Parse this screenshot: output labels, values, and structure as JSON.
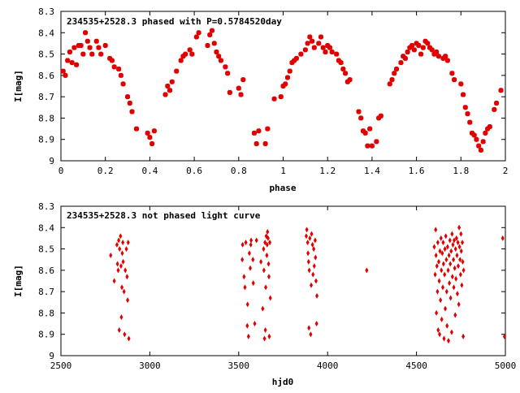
{
  "chart_data": [
    {
      "type": "scatter",
      "title": "234535+2528.3 phased with P=0.5784520day",
      "xlabel": "phase",
      "ylabel": "I[mag]",
      "xlim": [
        0,
        2
      ],
      "ylim": [
        8.3,
        9
      ],
      "y_inverted": true,
      "grid": false,
      "marker": "filled-square",
      "color": "#e00000",
      "xticks": [
        {
          "v": 0,
          "label": "0"
        },
        {
          "v": 0.2,
          "label": "0.2"
        },
        {
          "v": 0.4,
          "label": "0.4"
        },
        {
          "v": 0.6,
          "label": "0.6"
        },
        {
          "v": 0.8,
          "label": "0.8"
        },
        {
          "v": 1,
          "label": "1"
        },
        {
          "v": 1.2,
          "label": "1.2"
        },
        {
          "v": 1.4,
          "label": "1.4"
        },
        {
          "v": 1.6,
          "label": "1.6"
        },
        {
          "v": 1.8,
          "label": "1.8"
        },
        {
          "v": 2,
          "label": "2"
        }
      ],
      "yticks": [
        {
          "v": 8.3,
          "label": "8.3"
        },
        {
          "v": 8.4,
          "label": "8.4"
        },
        {
          "v": 8.5,
          "label": "8.5"
        },
        {
          "v": 8.6,
          "label": "8.6"
        },
        {
          "v": 8.7,
          "label": "8.7"
        },
        {
          "v": 8.8,
          "label": "8.8"
        },
        {
          "v": 8.9,
          "label": "8.9"
        },
        {
          "v": 9,
          "label": "9"
        }
      ],
      "points": [
        [
          0.01,
          8.58
        ],
        [
          0.02,
          8.6
        ],
        [
          0.03,
          8.53
        ],
        [
          0.04,
          8.49
        ],
        [
          0.05,
          8.54
        ],
        [
          0.06,
          8.47
        ],
        [
          0.07,
          8.55
        ],
        [
          0.08,
          8.46
        ],
        [
          0.09,
          8.46
        ],
        [
          0.1,
          8.5
        ],
        [
          0.11,
          8.4
        ],
        [
          0.12,
          8.44
        ],
        [
          0.13,
          8.47
        ],
        [
          0.14,
          8.5
        ],
        [
          0.16,
          8.44
        ],
        [
          0.17,
          8.47
        ],
        [
          0.18,
          8.5
        ],
        [
          0.2,
          8.46
        ],
        [
          0.22,
          8.52
        ],
        [
          0.23,
          8.53
        ],
        [
          0.24,
          8.56
        ],
        [
          0.26,
          8.57
        ],
        [
          0.27,
          8.6
        ],
        [
          0.28,
          8.64
        ],
        [
          0.3,
          8.7
        ],
        [
          0.31,
          8.73
        ],
        [
          0.32,
          8.77
        ],
        [
          0.34,
          8.85
        ],
        [
          0.39,
          8.87
        ],
        [
          0.4,
          8.89
        ],
        [
          0.41,
          8.92
        ],
        [
          0.42,
          8.86
        ],
        [
          0.47,
          8.69
        ],
        [
          0.48,
          8.65
        ],
        [
          0.49,
          8.67
        ],
        [
          0.5,
          8.63
        ],
        [
          0.52,
          8.58
        ],
        [
          0.54,
          8.53
        ],
        [
          0.55,
          8.51
        ],
        [
          0.56,
          8.5
        ],
        [
          0.58,
          8.48
        ],
        [
          0.59,
          8.5
        ],
        [
          0.61,
          8.42
        ],
        [
          0.62,
          8.4
        ],
        [
          0.66,
          8.46
        ],
        [
          0.67,
          8.41
        ],
        [
          0.68,
          8.39
        ],
        [
          0.69,
          8.45
        ],
        [
          0.7,
          8.49
        ],
        [
          0.71,
          8.51
        ],
        [
          0.72,
          8.53
        ],
        [
          0.74,
          8.56
        ],
        [
          0.75,
          8.59
        ],
        [
          0.76,
          8.68
        ],
        [
          0.8,
          8.66
        ],
        [
          0.81,
          8.69
        ],
        [
          0.82,
          8.62
        ],
        [
          0.87,
          8.87
        ],
        [
          0.88,
          8.92
        ],
        [
          0.89,
          8.86
        ],
        [
          0.92,
          8.92
        ],
        [
          0.93,
          8.85
        ],
        [
          0.96,
          8.71
        ],
        [
          0.99,
          8.7
        ],
        [
          1.0,
          8.65
        ],
        [
          1.01,
          8.64
        ],
        [
          1.02,
          8.61
        ],
        [
          1.03,
          8.58
        ],
        [
          1.04,
          8.54
        ],
        [
          1.05,
          8.53
        ],
        [
          1.06,
          8.52
        ],
        [
          1.08,
          8.5
        ],
        [
          1.1,
          8.48
        ],
        [
          1.11,
          8.45
        ],
        [
          1.12,
          8.42
        ],
        [
          1.13,
          8.44
        ],
        [
          1.14,
          8.47
        ],
        [
          1.16,
          8.45
        ],
        [
          1.17,
          8.42
        ],
        [
          1.18,
          8.47
        ],
        [
          1.19,
          8.49
        ],
        [
          1.2,
          8.46
        ],
        [
          1.21,
          8.47
        ],
        [
          1.22,
          8.49
        ],
        [
          1.24,
          8.5
        ],
        [
          1.25,
          8.53
        ],
        [
          1.26,
          8.54
        ],
        [
          1.27,
          8.57
        ],
        [
          1.28,
          8.59
        ],
        [
          1.29,
          8.63
        ],
        [
          1.3,
          8.62
        ],
        [
          1.34,
          8.77
        ],
        [
          1.35,
          8.8
        ],
        [
          1.36,
          8.86
        ],
        [
          1.37,
          8.87
        ],
        [
          1.38,
          8.93
        ],
        [
          1.39,
          8.85
        ],
        [
          1.4,
          8.93
        ],
        [
          1.42,
          8.91
        ],
        [
          1.43,
          8.8
        ],
        [
          1.44,
          8.79
        ],
        [
          1.48,
          8.64
        ],
        [
          1.49,
          8.62
        ],
        [
          1.5,
          8.59
        ],
        [
          1.51,
          8.57
        ],
        [
          1.53,
          8.54
        ],
        [
          1.54,
          8.51
        ],
        [
          1.55,
          8.52
        ],
        [
          1.56,
          8.49
        ],
        [
          1.57,
          8.47
        ],
        [
          1.58,
          8.46
        ],
        [
          1.59,
          8.48
        ],
        [
          1.6,
          8.45
        ],
        [
          1.61,
          8.46
        ],
        [
          1.62,
          8.5
        ],
        [
          1.63,
          8.47
        ],
        [
          1.64,
          8.44
        ],
        [
          1.65,
          8.45
        ],
        [
          1.66,
          8.47
        ],
        [
          1.67,
          8.48
        ],
        [
          1.68,
          8.5
        ],
        [
          1.69,
          8.49
        ],
        [
          1.7,
          8.51
        ],
        [
          1.72,
          8.52
        ],
        [
          1.73,
          8.51
        ],
        [
          1.74,
          8.53
        ],
        [
          1.76,
          8.59
        ],
        [
          1.77,
          8.62
        ],
        [
          1.8,
          8.64
        ],
        [
          1.81,
          8.69
        ],
        [
          1.82,
          8.75
        ],
        [
          1.83,
          8.78
        ],
        [
          1.84,
          8.82
        ],
        [
          1.85,
          8.87
        ],
        [
          1.86,
          8.88
        ],
        [
          1.87,
          8.9
        ],
        [
          1.88,
          8.93
        ],
        [
          1.89,
          8.95
        ],
        [
          1.9,
          8.91
        ],
        [
          1.91,
          8.87
        ],
        [
          1.92,
          8.85
        ],
        [
          1.93,
          8.84
        ],
        [
          1.95,
          8.76
        ],
        [
          1.96,
          8.73
        ],
        [
          1.98,
          8.67
        ]
      ]
    },
    {
      "type": "scatter",
      "title": "234535+2528.3 not phased light curve",
      "xlabel": "hjd0",
      "ylabel": "I[mag]",
      "xlim": [
        2500,
        5000
      ],
      "ylim": [
        8.3,
        9
      ],
      "y_inverted": true,
      "grid": false,
      "marker": "filled-diamond",
      "color": "#e00000",
      "xticks": [
        {
          "v": 2500,
          "label": "2500"
        },
        {
          "v": 3000,
          "label": "3000"
        },
        {
          "v": 3500,
          "label": "3500"
        },
        {
          "v": 4000,
          "label": "4000"
        },
        {
          "v": 4500,
          "label": "4500"
        },
        {
          "v": 5000,
          "label": "5000"
        }
      ],
      "yticks": [
        {
          "v": 8.3,
          "label": "8.3"
        },
        {
          "v": 8.4,
          "label": "8.4"
        },
        {
          "v": 8.5,
          "label": "8.5"
        },
        {
          "v": 8.6,
          "label": "8.6"
        },
        {
          "v": 8.7,
          "label": "8.7"
        },
        {
          "v": 8.8,
          "label": "8.8"
        },
        {
          "v": 8.9,
          "label": "8.9"
        },
        {
          "v": 9,
          "label": "9"
        }
      ],
      "points": [
        [
          2780,
          8.53
        ],
        [
          2800,
          8.65
        ],
        [
          2815,
          8.48
        ],
        [
          2818,
          8.57
        ],
        [
          2822,
          8.6
        ],
        [
          2825,
          8.46
        ],
        [
          2828,
          8.88
        ],
        [
          2830,
          8.5
        ],
        [
          2835,
          8.44
        ],
        [
          2838,
          8.58
        ],
        [
          2840,
          8.82
        ],
        [
          2843,
          8.68
        ],
        [
          2845,
          8.52
        ],
        [
          2848,
          8.47
        ],
        [
          2850,
          8.56
        ],
        [
          2855,
          8.7
        ],
        [
          2858,
          8.9
        ],
        [
          2862,
          8.6
        ],
        [
          2868,
          8.5
        ],
        [
          2872,
          8.63
        ],
        [
          2875,
          8.74
        ],
        [
          2878,
          8.47
        ],
        [
          2882,
          8.92
        ],
        [
          3520,
          8.55
        ],
        [
          3522,
          8.48
        ],
        [
          3530,
          8.63
        ],
        [
          3535,
          8.68
        ],
        [
          3540,
          8.47
        ],
        [
          3548,
          8.86
        ],
        [
          3550,
          8.76
        ],
        [
          3555,
          8.91
        ],
        [
          3560,
          8.52
        ],
        [
          3565,
          8.59
        ],
        [
          3568,
          8.48
        ],
        [
          3570,
          8.46
        ],
        [
          3580,
          8.55
        ],
        [
          3582,
          8.66
        ],
        [
          3590,
          8.85
        ],
        [
          3600,
          8.46
        ],
        [
          3625,
          8.56
        ],
        [
          3635,
          8.78
        ],
        [
          3640,
          8.5
        ],
        [
          3642,
          8.6
        ],
        [
          3645,
          8.92
        ],
        [
          3648,
          8.47
        ],
        [
          3650,
          8.88
        ],
        [
          3652,
          8.68
        ],
        [
          3655,
          8.44
        ],
        [
          3658,
          8.53
        ],
        [
          3660,
          8.48
        ],
        [
          3662,
          8.42
        ],
        [
          3665,
          8.45
        ],
        [
          3668,
          8.57
        ],
        [
          3670,
          8.63
        ],
        [
          3672,
          8.91
        ],
        [
          3675,
          8.47
        ],
        [
          3678,
          8.73
        ],
        [
          3880,
          8.44
        ],
        [
          3883,
          8.41
        ],
        [
          3888,
          8.47
        ],
        [
          3890,
          8.52
        ],
        [
          3893,
          8.56
        ],
        [
          3895,
          8.87
        ],
        [
          3897,
          8.6
        ],
        [
          3900,
          8.45
        ],
        [
          3905,
          8.9
        ],
        [
          3908,
          8.67
        ],
        [
          3910,
          8.43
        ],
        [
          3915,
          8.48
        ],
        [
          3918,
          8.62
        ],
        [
          3922,
          8.5
        ],
        [
          3925,
          8.58
        ],
        [
          3930,
          8.46
        ],
        [
          3932,
          8.54
        ],
        [
          3935,
          8.65
        ],
        [
          3938,
          8.85
        ],
        [
          3940,
          8.72
        ],
        [
          4220,
          8.6
        ],
        [
          4600,
          8.49
        ],
        [
          4605,
          8.62
        ],
        [
          4608,
          8.41
        ],
        [
          4610,
          8.53
        ],
        [
          4612,
          8.8
        ],
        [
          4615,
          8.58
        ],
        [
          4618,
          8.7
        ],
        [
          4620,
          8.47
        ],
        [
          4622,
          8.88
        ],
        [
          4625,
          8.56
        ],
        [
          4628,
          8.65
        ],
        [
          4630,
          8.9
        ],
        [
          4632,
          8.51
        ],
        [
          4635,
          8.74
        ],
        [
          4638,
          8.45
        ],
        [
          4640,
          8.6
        ],
        [
          4642,
          8.83
        ],
        [
          4645,
          8.52
        ],
        [
          4648,
          8.68
        ],
        [
          4650,
          8.47
        ],
        [
          4652,
          8.57
        ],
        [
          4655,
          8.92
        ],
        [
          4658,
          8.62
        ],
        [
          4660,
          8.5
        ],
        [
          4662,
          8.78
        ],
        [
          4665,
          8.44
        ],
        [
          4668,
          8.55
        ],
        [
          4670,
          8.7
        ],
        [
          4672,
          8.86
        ],
        [
          4675,
          8.49
        ],
        [
          4678,
          8.6
        ],
        [
          4680,
          8.93
        ],
        [
          4683,
          8.53
        ],
        [
          4685,
          8.66
        ],
        [
          4688,
          8.46
        ],
        [
          4690,
          8.57
        ],
        [
          4692,
          8.73
        ],
        [
          4695,
          8.51
        ],
        [
          4698,
          8.89
        ],
        [
          4700,
          8.43
        ],
        [
          4702,
          8.63
        ],
        [
          4705,
          8.48
        ],
        [
          4708,
          8.55
        ],
        [
          4710,
          8.68
        ],
        [
          4712,
          8.46
        ],
        [
          4715,
          8.59
        ],
        [
          4718,
          8.81
        ],
        [
          4720,
          8.5
        ],
        [
          4722,
          8.64
        ],
        [
          4725,
          8.45
        ],
        [
          4728,
          8.53
        ],
        [
          4730,
          8.71
        ],
        [
          4733,
          8.47
        ],
        [
          4735,
          8.58
        ],
        [
          4738,
          8.76
        ],
        [
          4740,
          8.4
        ],
        [
          4742,
          8.49
        ],
        [
          4745,
          8.55
        ],
        [
          4748,
          8.62
        ],
        [
          4750,
          8.43
        ],
        [
          4752,
          8.51
        ],
        [
          4755,
          8.67
        ],
        [
          4758,
          8.47
        ],
        [
          4760,
          8.56
        ],
        [
          4763,
          8.91
        ],
        [
          4765,
          8.6
        ],
        [
          4985,
          8.45
        ],
        [
          4995,
          8.91
        ]
      ]
    }
  ]
}
